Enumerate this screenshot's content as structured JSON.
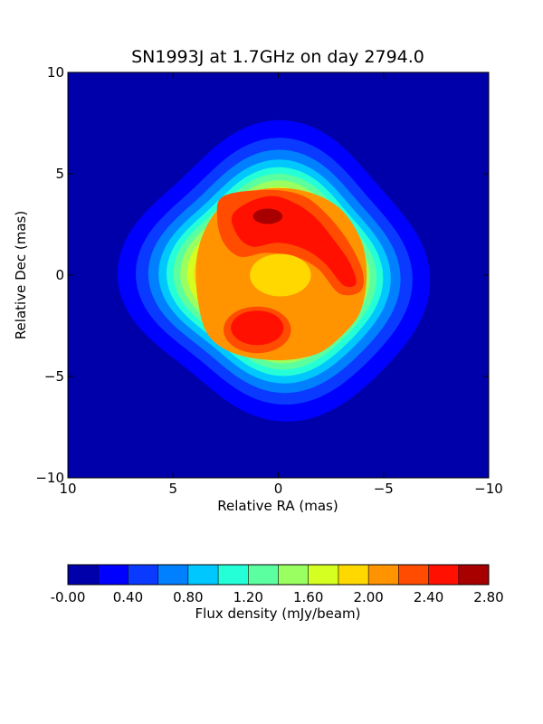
{
  "chart_data": {
    "type": "contour",
    "title": "SN1993J at 1.7GHz on day 2794.0",
    "xlabel": "Relative RA (mas)",
    "ylabel": "Relative Dec (mas)",
    "xlim": [
      10,
      -10
    ],
    "ylim": [
      -10,
      10
    ],
    "x_ticks": [
      "10",
      "5",
      "0",
      "−5",
      "−10"
    ],
    "y_ticks": [
      "10",
      "5",
      "0",
      "−5",
      "−10"
    ],
    "grid": false,
    "levels": [
      {
        "min": 0.0,
        "max": 0.2,
        "color": "#0000aa"
      },
      {
        "min": 0.2,
        "max": 0.4,
        "color": "#0000ff"
      },
      {
        "min": 0.4,
        "max": 0.6,
        "color": "#0a3aff"
      },
      {
        "min": 0.6,
        "max": 0.8,
        "color": "#0080ff"
      },
      {
        "min": 0.8,
        "max": 1.0,
        "color": "#00c8ff"
      },
      {
        "min": 1.0,
        "max": 1.2,
        "color": "#25ffd8"
      },
      {
        "min": 1.2,
        "max": 1.4,
        "color": "#5cffa0"
      },
      {
        "min": 1.4,
        "max": 1.6,
        "color": "#9aff60"
      },
      {
        "min": 1.6,
        "max": 1.8,
        "color": "#d4ff20"
      },
      {
        "min": 1.8,
        "max": 2.0,
        "color": "#ffd800"
      },
      {
        "min": 2.0,
        "max": 2.2,
        "color": "#ff9400"
      },
      {
        "min": 2.2,
        "max": 2.4,
        "color": "#ff4c00"
      },
      {
        "min": 2.4,
        "max": 2.6,
        "color": "#ff1000"
      },
      {
        "min": 2.6,
        "max": 2.8,
        "color": "#a80000"
      }
    ],
    "shell_radii": [
      7.0,
      6.2,
      5.65,
      5.2,
      4.85,
      4.55,
      4.25,
      3.95,
      3.65
    ],
    "features": [
      {
        "name": "central-plateau",
        "level": 9,
        "x": -0.1,
        "y": 0.0,
        "rx": 1.45,
        "ry": 1.05
      },
      {
        "name": "northern-lobe",
        "level": 12,
        "points": [
          [
            1.4,
            3.6
          ],
          [
            0.3,
            3.9
          ],
          [
            -0.7,
            3.6
          ],
          [
            -1.7,
            2.9
          ],
          [
            -2.6,
            1.8
          ],
          [
            -3.4,
            0.6
          ],
          [
            -3.7,
            -0.4
          ],
          [
            -3.1,
            -0.5
          ],
          [
            -2.2,
            0.6
          ],
          [
            -1.2,
            1.3
          ],
          [
            0.0,
            1.6
          ],
          [
            1.2,
            1.4
          ],
          [
            1.9,
            1.9
          ],
          [
            2.2,
            2.9
          ]
        ]
      },
      {
        "name": "northern-peak",
        "level": 13,
        "x": 0.5,
        "y": 2.9,
        "rx": 0.7,
        "ry": 0.38
      },
      {
        "name": "southern-lobe",
        "level": 12,
        "x": 1.0,
        "y": -2.6,
        "rx": 1.25,
        "ry": 0.85
      }
    ],
    "colorbar": {
      "label": "Flux density (mJy/beam)",
      "ticks": [
        "-0.00",
        "0.40",
        "0.80",
        "1.20",
        "1.60",
        "2.00",
        "2.40",
        "2.80"
      ],
      "range": [
        0.0,
        2.8
      ]
    }
  }
}
